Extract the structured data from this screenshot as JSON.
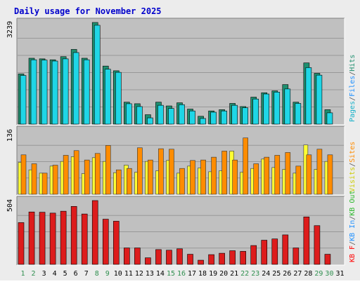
{
  "page": {
    "title": "Daily usage for November 2025"
  },
  "colors": {
    "background": "#ececec",
    "panel": "#c0c0c0",
    "grid": "#989898",
    "title": "#0000cc",
    "days_weekday": "#000000",
    "days_weekend": "#2f8f4f",
    "hits": "#1f8f6f",
    "files": "#1fd6e6",
    "pages": "#16b0c8",
    "visits": "#ffff33",
    "sites": "#ff8c00",
    "kbin": "#1e90ff",
    "kbout": "#2db82d",
    "kbf": "#ff0000",
    "kb": "#dd1c1c"
  },
  "chart_data": [
    {
      "type": "bar",
      "categories": [
        "1",
        "2",
        "3",
        "4",
        "5",
        "6",
        "7",
        "8",
        "9",
        "10",
        "11",
        "12",
        "13",
        "14",
        "15",
        "16",
        "17",
        "18",
        "19",
        "20",
        "21",
        "22",
        "23",
        "24",
        "25",
        "26",
        "27",
        "28",
        "29",
        "30",
        "31"
      ],
      "weekend_days": [
        "1",
        "2",
        "8",
        "9",
        "15",
        "16",
        "22",
        "23",
        "29",
        "30"
      ],
      "ylim": [
        0,
        3239
      ],
      "ymax_label": "3239",
      "legend": [
        "Pages",
        "/",
        "Files",
        "/",
        "Hits"
      ],
      "series": [
        {
          "name": "Hits",
          "values": [
            1600,
            2100,
            2080,
            2050,
            2150,
            2380,
            2100,
            3239,
            1850,
            1700,
            700,
            650,
            300,
            700,
            580,
            680,
            480,
            250,
            420,
            460,
            660,
            560,
            860,
            1000,
            1060,
            1260,
            700,
            1950,
            1620,
            460,
            null
          ]
        },
        {
          "name": "Files",
          "values": [
            1550,
            2050,
            2040,
            2010,
            2080,
            2280,
            2050,
            3150,
            1750,
            1650,
            650,
            560,
            200,
            600,
            500,
            620,
            420,
            180,
            380,
            420,
            600,
            520,
            800,
            960,
            1020,
            1120,
            660,
            1800,
            1560,
            360,
            null
          ]
        }
      ]
    },
    {
      "type": "bar",
      "ylim": [
        0,
        136
      ],
      "ymax_label": "136",
      "legend": [
        "Visits",
        "/",
        "Sites"
      ],
      "series": [
        {
          "name": "Visits",
          "values": [
            68,
            52,
            45,
            60,
            70,
            80,
            44,
            78,
            70,
            46,
            62,
            47,
            70,
            50,
            72,
            45,
            60,
            56,
            48,
            50,
            92,
            47,
            55,
            75,
            57,
            53,
            45,
            105,
            53,
            70,
            null
          ]
        },
        {
          "name": "Sites",
          "values": [
            84,
            65,
            45,
            62,
            83,
            93,
            73,
            87,
            104,
            52,
            55,
            99,
            73,
            97,
            96,
            55,
            72,
            73,
            79,
            92,
            73,
            120,
            65,
            79,
            83,
            89,
            60,
            84,
            96,
            84,
            null
          ]
        }
      ]
    },
    {
      "type": "bar",
      "ylim": [
        0,
        504
      ],
      "ymax_label": "504",
      "legend": [
        "KB F",
        "/",
        "KB In",
        "/",
        "KB Out"
      ],
      "series": [
        {
          "name": "KB F",
          "values": [
            330,
            414,
            412,
            405,
            420,
            458,
            398,
            504,
            357,
            341,
            130,
            130,
            52,
            117,
            112,
            123,
            80,
            33,
            77,
            88,
            108,
            103,
            149,
            191,
            201,
            233,
            130,
            375,
            306,
            80,
            null
          ]
        }
      ]
    }
  ]
}
